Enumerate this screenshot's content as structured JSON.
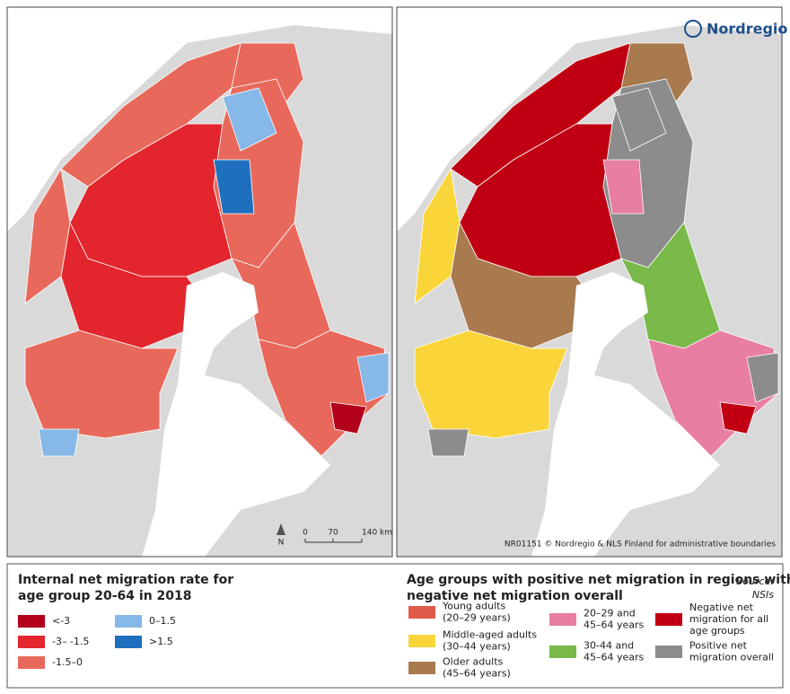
{
  "maps": {
    "logo": "Nordregio",
    "credit": "NR01151  © Nordregio & NLS Finland for administrative boundaries",
    "north": "N",
    "scale": [
      "0",
      "70",
      "140 km"
    ]
  },
  "left_legend": {
    "title": [
      "Internal net migration rate for",
      "age group 20-64 in 2018"
    ],
    "items": [
      {
        "label": "<-3",
        "color": "#b3001b"
      },
      {
        "label": "-3– -1.5",
        "color": "#e3262d"
      },
      {
        "label": "-1.5–0",
        "color": "#e8695b"
      },
      {
        "label": "0–1.5",
        "color": "#86b8e8"
      },
      {
        "label": ">1.5",
        "color": "#1f6fbf"
      }
    ]
  },
  "right_legend": {
    "title": [
      "Age groups with positive net migration in regions with",
      "negative net migration overall"
    ],
    "source": [
      "Source:",
      "NSIs"
    ],
    "items": [
      {
        "lines": [
          "Young adults",
          "(20–29 years)"
        ],
        "color": "#e05a4a"
      },
      {
        "lines": [
          "Middle-aged adults",
          "(30–44 years)"
        ],
        "color": "#f9d53a"
      },
      {
        "lines": [
          "Older adults",
          "(45–64 years)"
        ],
        "color": "#a87a4e"
      },
      {
        "lines": [
          "20–29 and",
          "45–64 years"
        ],
        "color": "#e87ea1"
      },
      {
        "lines": [
          "30-44 and",
          "45–64 years"
        ],
        "color": "#78b94a"
      },
      {
        "lines": [
          "Negative net",
          "migration for all",
          "age groups"
        ],
        "color": "#c00012"
      },
      {
        "lines": [
          "Positive net",
          "migration overall"
        ],
        "color": "#8c8c8c"
      }
    ]
  }
}
